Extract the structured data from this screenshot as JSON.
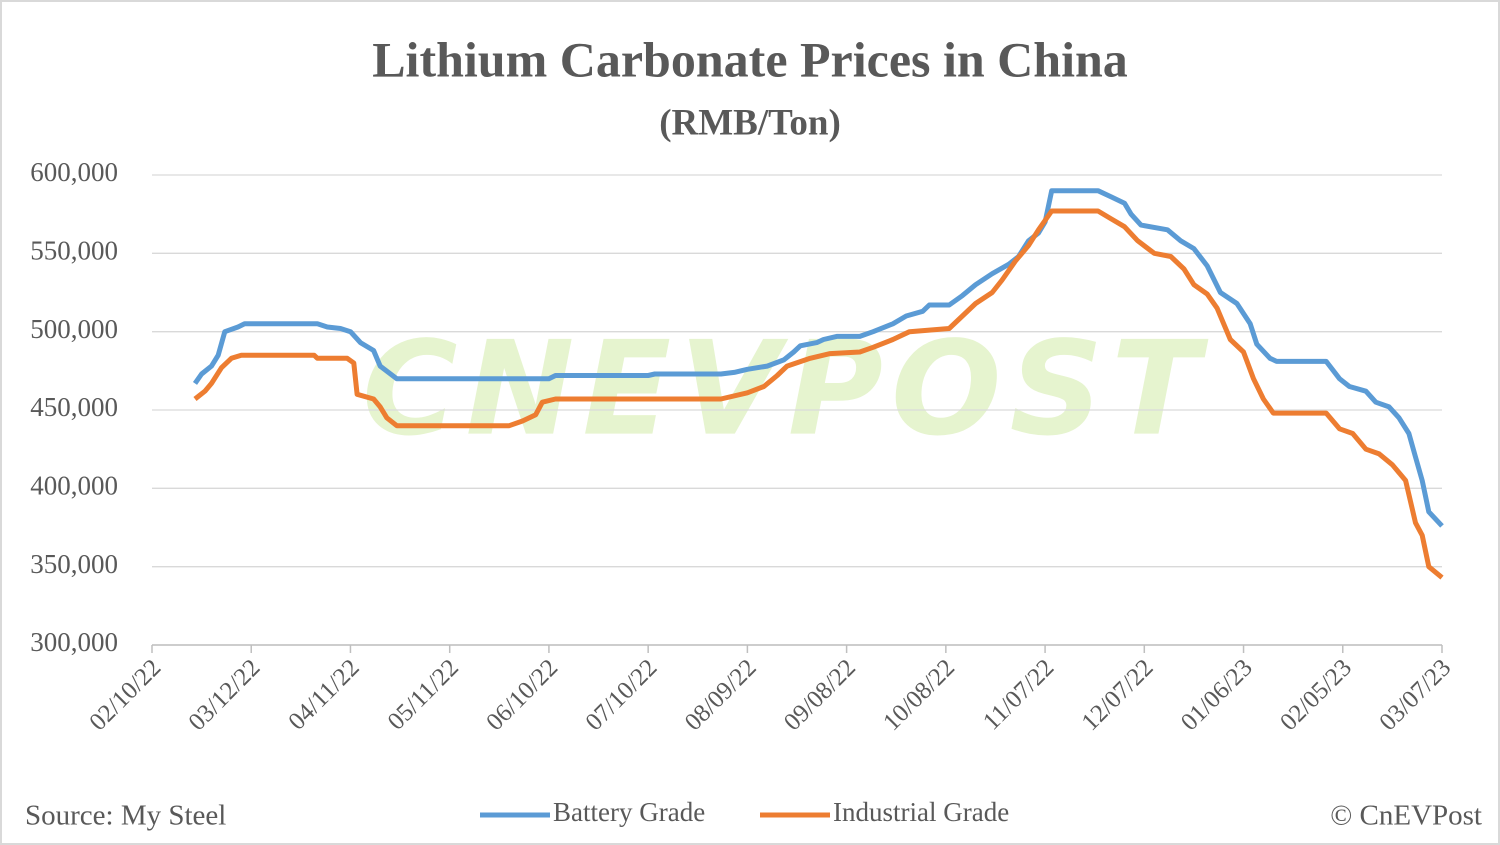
{
  "chart_data": {
    "type": "line",
    "title": "Lithium Carbonate Prices in China",
    "subtitle": "(RMB/Ton)",
    "source": "Source: My Steel",
    "credit": "© CnEVPost",
    "watermark": "CNEVPOST",
    "grid": true,
    "legend": "bottom",
    "xlim": [
      "02/10/22",
      "03/07/23"
    ],
    "xticks": [
      "02/10/22",
      "03/12/22",
      "04/11/22",
      "05/11/22",
      "06/10/22",
      "07/10/22",
      "08/09/22",
      "09/08/22",
      "10/08/22",
      "11/07/22",
      "12/07/22",
      "01/06/23",
      "02/05/23",
      "03/07/23"
    ],
    "ylim": [
      300000,
      600000
    ],
    "yticks": [
      {
        "value": 300000,
        "label": "300,000"
      },
      {
        "value": 350000,
        "label": "350,000"
      },
      {
        "value": 400000,
        "label": "400,000"
      },
      {
        "value": 450000,
        "label": "450,000"
      },
      {
        "value": 500000,
        "label": "500,000"
      },
      {
        "value": 550000,
        "label": "550,000"
      },
      {
        "value": 600000,
        "label": "600,000"
      }
    ],
    "series": [
      {
        "name": "Battery Grade",
        "color": "#5b9bd5",
        "x": [
          "02/23/22",
          "02/25/22",
          "02/28/22",
          "03/02/22",
          "03/04/22",
          "03/08/22",
          "03/10/22",
          "04/01/22",
          "04/04/22",
          "04/08/22",
          "04/11/22",
          "04/14/22",
          "04/18/22",
          "04/20/22",
          "04/25/22",
          "06/10/22",
          "06/12/22",
          "07/10/22",
          "07/12/22",
          "08/01/22",
          "08/05/22",
          "08/09/22",
          "08/15/22",
          "08/20/22",
          "08/23/22",
          "08/25/22",
          "08/30/22",
          "09/01/22",
          "09/05/22",
          "09/12/22",
          "09/16/22",
          "09/22/22",
          "09/26/22",
          "10/01/22",
          "10/03/22",
          "10/09/22",
          "10/13/22",
          "10/17/22",
          "10/22/22",
          "10/27/22",
          "10/30/22",
          "11/02/22",
          "11/05/22",
          "11/07/22",
          "11/09/22",
          "11/23/22",
          "11/27/22",
          "12/01/22",
          "12/03/22",
          "12/06/22",
          "12/14/22",
          "12/18/22",
          "12/22/22",
          "12/26/22",
          "12/30/22",
          "01/04/23",
          "01/08/23",
          "01/10/23",
          "01/14/23",
          "01/16/23",
          "01/31/23",
          "02/04/23",
          "02/07/23",
          "02/12/23",
          "02/15/23",
          "02/19/23",
          "02/22/23",
          "02/25/23",
          "02/27/23",
          "03/01/23",
          "03/03/23",
          "03/07/23"
        ],
        "values": [
          467000,
          473000,
          478000,
          485000,
          500000,
          503000,
          505000,
          505000,
          503000,
          502000,
          500000,
          493000,
          488000,
          478000,
          470000,
          470000,
          472000,
          472000,
          473000,
          473000,
          474000,
          476000,
          478000,
          482000,
          487000,
          491000,
          493000,
          495000,
          497000,
          497000,
          500000,
          505000,
          510000,
          513000,
          517000,
          517000,
          523000,
          530000,
          537000,
          543000,
          548000,
          558000,
          563000,
          570000,
          590000,
          590000,
          586000,
          582000,
          575000,
          568000,
          565000,
          558000,
          553000,
          542000,
          525000,
          518000,
          505000,
          492000,
          483000,
          481000,
          481000,
          470000,
          465000,
          462000,
          455000,
          452000,
          445000,
          435000,
          420000,
          405000,
          385000,
          376000
        ]
      },
      {
        "name": "Industrial Grade",
        "color": "#ed7d31",
        "x": [
          "02/23/22",
          "02/26/22",
          "02/28/22",
          "03/03/22",
          "03/06/22",
          "03/09/22",
          "03/31/22",
          "04/01/22",
          "04/10/22",
          "04/12/22",
          "04/13/22",
          "04/18/22",
          "04/20/22",
          "04/22/22",
          "04/25/22",
          "05/29/22",
          "06/02/22",
          "06/06/22",
          "06/08/22",
          "06/12/22",
          "08/01/22",
          "08/09/22",
          "08/14/22",
          "08/18/22",
          "08/21/22",
          "08/28/22",
          "09/03/22",
          "09/12/22",
          "09/16/22",
          "09/22/22",
          "09/27/22",
          "10/09/22",
          "10/13/22",
          "10/17/22",
          "10/22/22",
          "10/25/22",
          "10/29/22",
          "11/02/22",
          "11/05/22",
          "11/09/22",
          "11/23/22",
          "11/27/22",
          "12/01/22",
          "12/05/22",
          "12/10/22",
          "12/15/22",
          "12/19/22",
          "12/22/22",
          "12/26/22",
          "12/29/22",
          "01/02/23",
          "01/06/23",
          "01/09/23",
          "01/12/23",
          "01/15/23",
          "01/31/23",
          "02/04/23",
          "02/08/23",
          "02/12/23",
          "02/16/23",
          "02/20/23",
          "02/24/23",
          "02/27/23",
          "03/01/23",
          "03/03/23",
          "03/07/23"
        ],
        "values": [
          457000,
          462000,
          467000,
          477000,
          483000,
          485000,
          485000,
          483000,
          483000,
          480000,
          460000,
          457000,
          452000,
          445000,
          440000,
          440000,
          443000,
          447000,
          455000,
          457000,
          457000,
          461000,
          465000,
          472000,
          478000,
          483000,
          486000,
          487000,
          490000,
          495000,
          500000,
          502000,
          510000,
          518000,
          525000,
          533000,
          545000,
          555000,
          565000,
          577000,
          577000,
          572000,
          567000,
          558000,
          550000,
          548000,
          540000,
          530000,
          524000,
          515000,
          495000,
          487000,
          470000,
          457000,
          448000,
          448000,
          438000,
          435000,
          425000,
          422000,
          415000,
          405000,
          378000,
          370000,
          350000,
          343000
        ]
      }
    ]
  }
}
